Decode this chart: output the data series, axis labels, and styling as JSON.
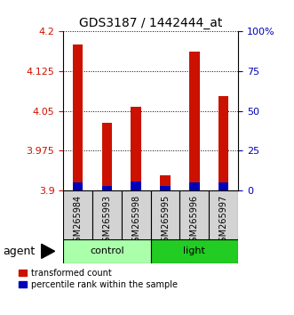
{
  "title": "GDS3187 / 1442444_at",
  "samples": [
    "GSM265984",
    "GSM265993",
    "GSM265998",
    "GSM265995",
    "GSM265996",
    "GSM265997"
  ],
  "group_labels": [
    "control",
    "light"
  ],
  "group_colors": [
    "#AAFFAA",
    "#22CC22"
  ],
  "transformed_counts": [
    4.175,
    4.028,
    4.058,
    3.928,
    4.162,
    4.078
  ],
  "percentile_ranks_pct": [
    5.0,
    3.0,
    5.5,
    3.0,
    5.0,
    5.0
  ],
  "y_min": 3.9,
  "y_max": 4.2,
  "y_ticks": [
    3.9,
    3.975,
    4.05,
    4.125,
    4.2
  ],
  "y_tick_labels": [
    "3.9",
    "3.975",
    "4.05",
    "4.125",
    "4.2"
  ],
  "right_y_ticks_pct": [
    0,
    25,
    50,
    75,
    100
  ],
  "right_y_tick_labels": [
    "0",
    "25",
    "50",
    "75",
    "100%"
  ],
  "bar_color_red": "#CC1100",
  "bar_color_blue": "#0000BB",
  "bar_width": 0.35,
  "agent_label": "agent",
  "legend_red": "transformed count",
  "legend_blue": "percentile rank within the sample",
  "ylabel_color_red": "#CC1100",
  "ylabel_color_blue": "#0000BB",
  "title_fontsize": 10,
  "tick_fontsize": 8,
  "sample_fontsize": 7,
  "group_fontsize": 8,
  "legend_fontsize": 7
}
